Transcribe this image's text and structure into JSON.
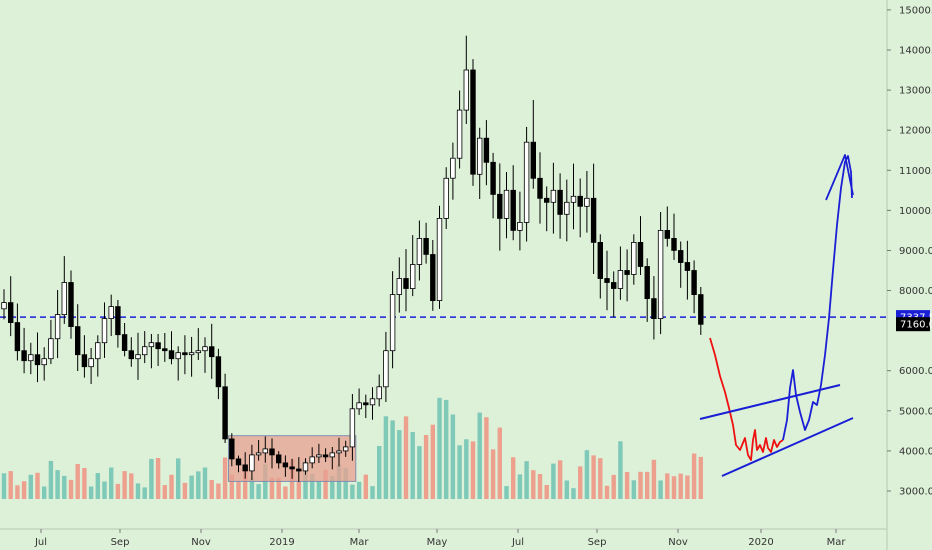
{
  "chart_data": {
    "type": "candlestick",
    "title": "",
    "grid": false,
    "colors": {
      "background": "#ddf0d8",
      "candle": "#000000",
      "volume_up": "#7fc9b8",
      "volume_down": "#eea08f",
      "dashed_line": "#1a1fd6",
      "box_fill": "#e8a090",
      "drawing_red": "#ee1111",
      "drawing_blue": "#1a1fd6",
      "last_price_tag": "#000000",
      "level_tag": "#1a1fd6"
    },
    "price_axis": {
      "ticks": [
        "15000.0",
        "14000.0",
        "13000.0",
        "12000.0",
        "11000.0",
        "10000.0",
        "9000.0",
        "8000.0",
        "6000.0",
        "5000.0",
        "4000.0",
        "3000.0"
      ],
      "range": [
        2300,
        15300
      ]
    },
    "time_axis": {
      "ticks": [
        "Jul",
        "Sep",
        "Nov",
        "2019",
        "Mar",
        "May",
        "Jul",
        "Sep",
        "Nov",
        "2020",
        "Mar"
      ]
    },
    "level_line": 7337.5,
    "level_label": "7337.5",
    "last_price": 7160.0,
    "last_price_label": "7160.0",
    "consolidation_box": {
      "week_start": 33.5,
      "week_end": 52.5,
      "price_low": 3240,
      "price_high": 4380
    },
    "weekly_closes": [
      7700,
      7200,
      6500,
      6250,
      6400,
      6150,
      6300,
      6800,
      7400,
      8200,
      7100,
      6400,
      6100,
      6300,
      6700,
      7300,
      7600,
      6900,
      6500,
      6300,
      6400,
      6600,
      6700,
      6550,
      6500,
      6300,
      6450,
      6400,
      6450,
      6500,
      6600,
      6350,
      5600,
      4300,
      3800,
      3650,
      3500,
      3900,
      3950,
      4050,
      3900,
      3700,
      3600,
      3550,
      3500,
      3700,
      3850,
      3900,
      3850,
      3950,
      4000,
      4100,
      5050,
      5200,
      5150,
      5300,
      5600,
      6500,
      7900,
      8300,
      8050,
      8650,
      9300,
      8900,
      7750,
      9800,
      10800,
      11300,
      12500,
      13500,
      10900,
      11800,
      11200,
      10400,
      9800,
      10500,
      9500,
      9700,
      11700,
      10800,
      10300,
      10200,
      10500,
      9900,
      10200,
      10350,
      10100,
      10300,
      9200,
      8300,
      8200,
      8050,
      8500,
      8400,
      9200,
      8600,
      7800,
      7300,
      9500,
      9300,
      9000,
      8700,
      8500,
      7900,
      7160
    ],
    "drawings": {
      "red_projection": [
        [
          710,
          338
        ],
        [
          715,
          355
        ],
        [
          720,
          376
        ],
        [
          725,
          392
        ],
        [
          729,
          408
        ],
        [
          733,
          425
        ],
        [
          736,
          445
        ],
        [
          740,
          450
        ],
        [
          745,
          438
        ],
        [
          748,
          455
        ],
        [
          751,
          460
        ],
        [
          753,
          440
        ],
        [
          755,
          430
        ],
        [
          757,
          450
        ],
        [
          760,
          445
        ],
        [
          763,
          452
        ],
        [
          766,
          438
        ],
        [
          768,
          448
        ],
        [
          771,
          452
        ],
        [
          774,
          440
        ],
        [
          777,
          447
        ],
        [
          780,
          442
        ],
        [
          783,
          440
        ]
      ],
      "blue_projection": [
        [
          783,
          440
        ],
        [
          787,
          420
        ],
        [
          790,
          388
        ],
        [
          793,
          370
        ],
        [
          796,
          395
        ],
        [
          800,
          412
        ],
        [
          805,
          430
        ],
        [
          809,
          420
        ],
        [
          813,
          402
        ],
        [
          817,
          405
        ],
        [
          821,
          385
        ],
        [
          825,
          355
        ],
        [
          829,
          318
        ],
        [
          833,
          270
        ],
        [
          837,
          225
        ],
        [
          841,
          188
        ],
        [
          845,
          162
        ],
        [
          848,
          156
        ],
        [
          851,
          172
        ],
        [
          852,
          198
        ]
      ],
      "blue_arrow_head": [
        [
          826,
          200
        ],
        [
          845,
          155
        ],
        [
          853,
          195
        ]
      ],
      "channel_upper": [
        [
          700,
          419
        ],
        [
          840,
          385
        ]
      ],
      "channel_lower": [
        [
          722,
          476
        ],
        [
          853,
          418
        ]
      ]
    }
  }
}
